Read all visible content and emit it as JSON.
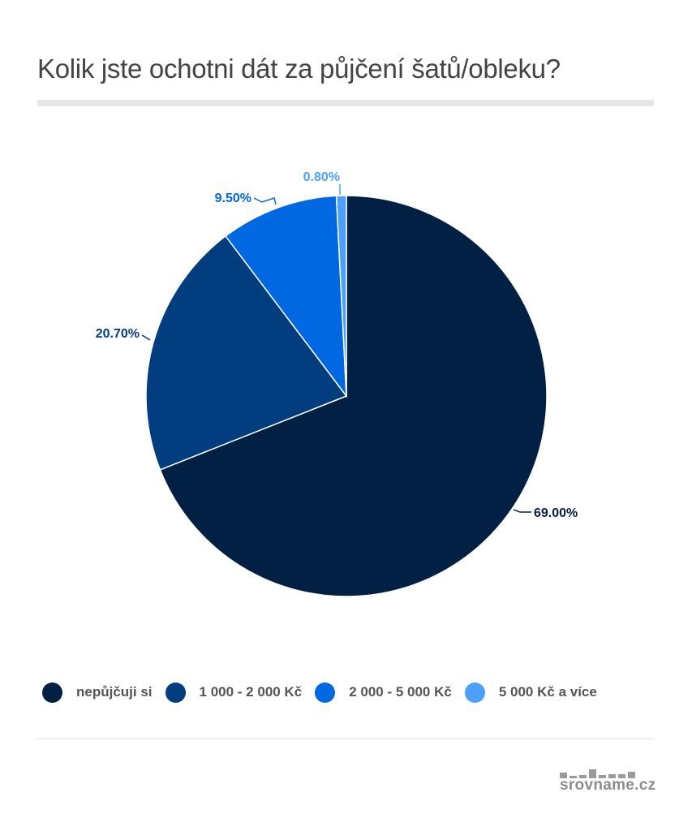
{
  "title": "Kolik jste ochotni dát za půjčení šatů/obleku?",
  "chart_data": {
    "type": "pie",
    "title": "Kolik jste ochotni dát za půjčení šatů/obleku?",
    "categories": [
      "nepůjčuji si",
      "1 000 - 2 000 Kč",
      "2 000 - 5 000 Kč",
      "5 000 Kč a více"
    ],
    "values": [
      69.0,
      20.7,
      9.5,
      0.8
    ],
    "labels": [
      "69.00%",
      "20.70%",
      "9.50%",
      "0.80%"
    ],
    "colors": [
      "#012044",
      "#013d7f",
      "#0068e0",
      "#4c9ffb"
    ],
    "start_angle": "12 o'clock, clockwise",
    "legend_position": "bottom"
  },
  "legend": {
    "items": [
      {
        "label": "nepůjčuji si",
        "color": "#012044"
      },
      {
        "label": "1 000 - 2 000 Kč",
        "color": "#013d7f"
      },
      {
        "label": "2 000 - 5 000 Kč",
        "color": "#0068e0"
      },
      {
        "label": "5 000 Kč a více",
        "color": "#4c9ffb"
      }
    ]
  },
  "branding": {
    "logo_text": "srovname.cz"
  }
}
